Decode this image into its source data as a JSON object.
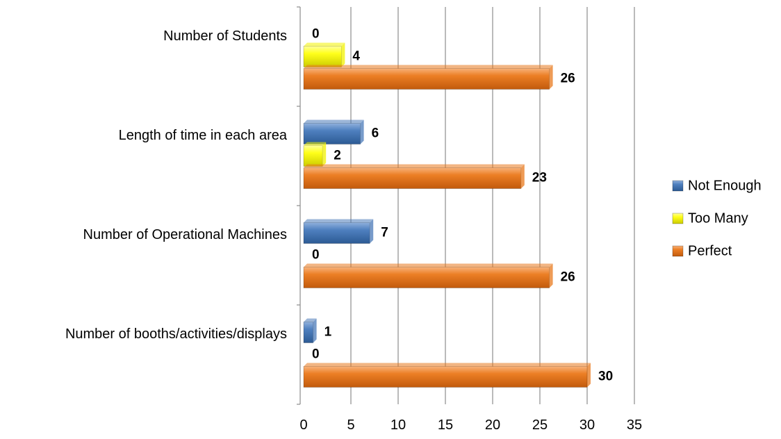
{
  "chart_data": {
    "type": "bar",
    "orientation": "horizontal",
    "categories": [
      "Number of Students",
      "Length of time in each area",
      "Number of Operational Machines",
      "Number of booths/activities/displays"
    ],
    "series": [
      {
        "name": "Not Enough",
        "color": "#4a7ab8",
        "values": [
          null,
          6,
          7,
          1
        ]
      },
      {
        "name": "Too Many",
        "color": "#f2f200",
        "values": [
          4,
          2,
          0,
          0
        ]
      },
      {
        "name": "Perfect",
        "color": "#e8791e",
        "values": [
          26,
          23,
          26,
          30
        ]
      }
    ],
    "data_labels": [
      [
        "0",
        "4",
        "26"
      ],
      [
        "6",
        "2",
        "23"
      ],
      [
        "7",
        "0",
        "26"
      ],
      [
        "1",
        "0",
        "30"
      ]
    ],
    "xlim": [
      0,
      35
    ],
    "xticks": [
      0,
      5,
      10,
      15,
      20,
      25,
      30,
      35
    ],
    "title": "",
    "xlabel": "",
    "ylabel": "",
    "grid": "vertical",
    "legend": "right"
  }
}
